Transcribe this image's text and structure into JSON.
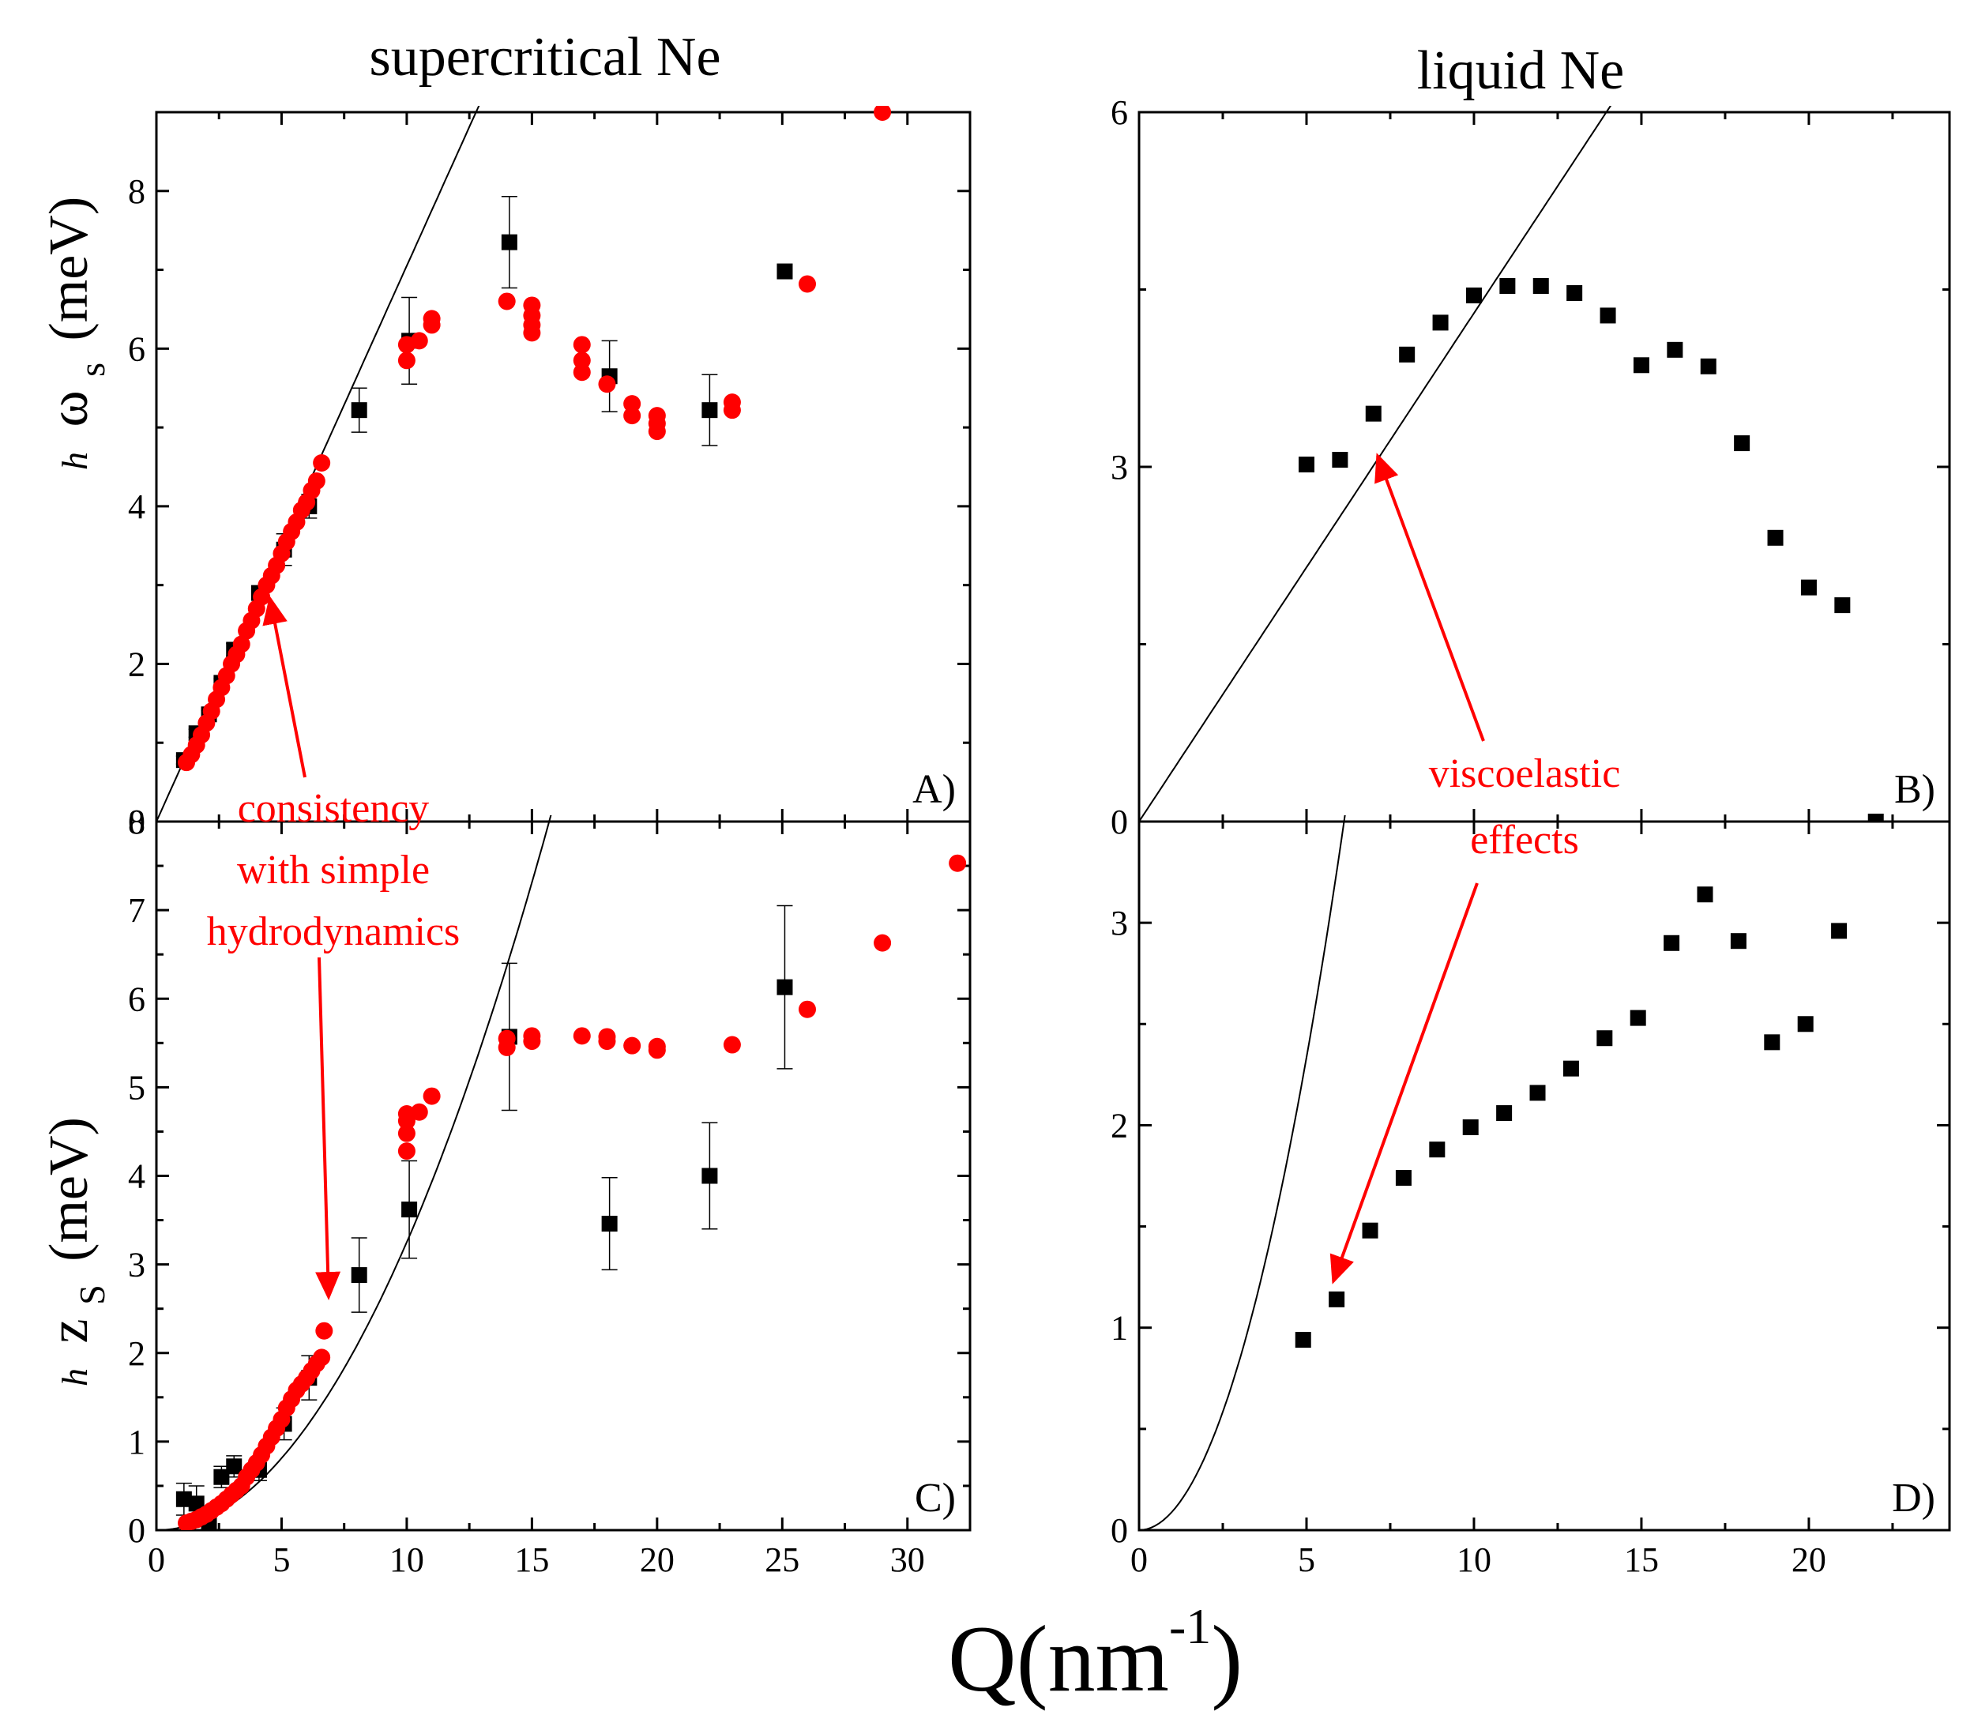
{
  "titles": {
    "left": "supercritical Ne",
    "right": "liquid Ne"
  },
  "xlabel": "Q(nm",
  "xlabel_sup": "-1",
  "xlabel_close": ")",
  "ylabel_top": {
    "h": "h",
    "omega": "ω",
    "sub": "s",
    "rest": "(meV)"
  },
  "ylabel_bottom": {
    "h": "h",
    "z": "z",
    "sub": "S",
    "rest": "(meV)"
  },
  "annotations": {
    "consistency": [
      "consistency",
      "with simple",
      "hydrodynamics"
    ],
    "viscoelastic": [
      "viscoelastic",
      "effects"
    ],
    "color": "#ff0000"
  },
  "colors": {
    "exp": "#000000",
    "md": "#ff0000",
    "line": "#000000"
  },
  "chart_data": [
    {
      "id": "A",
      "panel_label": "A)",
      "type": "scatter",
      "title": "supercritical Ne",
      "xlim": [
        0,
        32.5
      ],
      "ylim": [
        0,
        9
      ],
      "xticks": [
        0,
        5,
        10,
        15,
        20,
        25,
        30
      ],
      "yticks": [
        0,
        2,
        4,
        6,
        8
      ],
      "ytick_labels": [
        "0",
        "2",
        "4",
        "6",
        "8"
      ],
      "line": {
        "kind": "linear",
        "slope": 0.705
      },
      "series": [
        {
          "name": "exp",
          "marker": "square",
          "points": [
            [
              1.1,
              0.78
            ],
            [
              1.6,
              1.12
            ],
            [
              2.1,
              1.36
            ],
            [
              2.6,
              1.76
            ],
            [
              3.1,
              2.18
            ],
            [
              4.1,
              2.9
            ],
            [
              5.1,
              3.45
            ],
            [
              6.1,
              4.0
            ],
            [
              8.1,
              5.22
            ],
            [
              10.1,
              6.1
            ],
            [
              14.1,
              7.35
            ],
            [
              18.1,
              5.65
            ],
            [
              22.1,
              5.22
            ],
            [
              25.1,
              6.98
            ]
          ],
          "errors": [
            0.05,
            0.05,
            0.05,
            0.05,
            0.08,
            0.08,
            0.2,
            0.15,
            0.28,
            0.55,
            0.58,
            0.45,
            0.45,
            0.0
          ]
        },
        {
          "name": "md",
          "marker": "circle",
          "points": [
            [
              1.2,
              0.75
            ],
            [
              1.4,
              0.85
            ],
            [
              1.6,
              0.97
            ],
            [
              1.8,
              1.1
            ],
            [
              2.0,
              1.25
            ],
            [
              2.2,
              1.4
            ],
            [
              2.4,
              1.55
            ],
            [
              2.6,
              1.7
            ],
            [
              2.8,
              1.85
            ],
            [
              3.0,
              2.0
            ],
            [
              3.2,
              2.12
            ],
            [
              3.4,
              2.25
            ],
            [
              3.6,
              2.42
            ],
            [
              3.8,
              2.55
            ],
            [
              4.0,
              2.7
            ],
            [
              4.2,
              2.85
            ],
            [
              4.4,
              3.0
            ],
            [
              4.6,
              3.12
            ],
            [
              4.8,
              3.25
            ],
            [
              5.0,
              3.4
            ],
            [
              5.2,
              3.55
            ],
            [
              5.4,
              3.68
            ],
            [
              5.6,
              3.8
            ],
            [
              5.8,
              3.95
            ],
            [
              6.0,
              4.05
            ],
            [
              6.2,
              4.2
            ],
            [
              6.4,
              4.32
            ],
            [
              6.6,
              4.55
            ],
            [
              10.0,
              5.85
            ],
            [
              10.0,
              6.05
            ],
            [
              10.5,
              6.1
            ],
            [
              11.0,
              6.3
            ],
            [
              11.0,
              6.38
            ],
            [
              14.0,
              6.6
            ],
            [
              15.0,
              6.2
            ],
            [
              15.0,
              6.3
            ],
            [
              15.0,
              6.42
            ],
            [
              15.0,
              6.55
            ],
            [
              17.0,
              5.7
            ],
            [
              17.0,
              5.85
            ],
            [
              17.0,
              6.05
            ],
            [
              18.0,
              5.55
            ],
            [
              19.0,
              5.15
            ],
            [
              19.0,
              5.3
            ],
            [
              20.0,
              4.95
            ],
            [
              20.0,
              5.05
            ],
            [
              20.0,
              5.15
            ],
            [
              23.0,
              5.22
            ],
            [
              23.0,
              5.32
            ],
            [
              26.0,
              6.82
            ],
            [
              29.0,
              9.0
            ]
          ]
        }
      ]
    },
    {
      "id": "B",
      "panel_label": "B)",
      "type": "scatter",
      "title": "liquid Ne",
      "xlim": [
        0,
        24.2
      ],
      "ylim": [
        0,
        6
      ],
      "xticks": [
        0,
        5,
        10,
        15,
        20
      ],
      "yticks": [
        0,
        3,
        6
      ],
      "ytick_labels": [
        "0",
        "3",
        "6"
      ],
      "line": {
        "kind": "linear",
        "slope": 0.43
      },
      "series": [
        {
          "name": "exp",
          "marker": "square",
          "points": [
            [
              5,
              3.02
            ],
            [
              6,
              3.06
            ],
            [
              7,
              3.45
            ],
            [
              8,
              3.95
            ],
            [
              9,
              4.22
            ],
            [
              10,
              4.45
            ],
            [
              11,
              4.53
            ],
            [
              12,
              4.53
            ],
            [
              13,
              4.47
            ],
            [
              14,
              4.28
            ],
            [
              15,
              3.86
            ],
            [
              16,
              3.99
            ],
            [
              17,
              3.85
            ],
            [
              18,
              3.2
            ],
            [
              19,
              2.4
            ],
            [
              20,
              1.98
            ],
            [
              21,
              1.83
            ],
            [
              22,
              0.0
            ]
          ]
        }
      ]
    },
    {
      "id": "C",
      "panel_label": "C)",
      "type": "scatter",
      "xlim": [
        0,
        32.5
      ],
      "ylim": [
        0,
        8
      ],
      "xticks": [
        0,
        5,
        10,
        15,
        20,
        25,
        30
      ],
      "yticks": [
        0,
        1,
        2,
        3,
        4,
        5,
        6,
        7,
        8
      ],
      "ytick_labels": [
        "0",
        "1",
        "2",
        "3",
        "4",
        "5",
        "6",
        "7",
        "8"
      ],
      "line": {
        "kind": "quadratic",
        "coef": 0.0325
      },
      "series": [
        {
          "name": "exp",
          "marker": "square",
          "points": [
            [
              1.1,
              0.35
            ],
            [
              1.6,
              0.3
            ],
            [
              2.1,
              0.08
            ],
            [
              2.6,
              0.6
            ],
            [
              3.1,
              0.72
            ],
            [
              4.1,
              0.68
            ],
            [
              5.1,
              1.2
            ],
            [
              6.1,
              1.72
            ],
            [
              8.1,
              2.88
            ],
            [
              10.1,
              3.62
            ],
            [
              14.1,
              5.57
            ],
            [
              18.1,
              3.46
            ],
            [
              22.1,
              4.0
            ],
            [
              25.1,
              6.13
            ]
          ],
          "errors": [
            0.18,
            0.2,
            0.1,
            0.12,
            0.12,
            0.12,
            0.18,
            0.25,
            0.42,
            0.55,
            0.83,
            0.52,
            0.6,
            0.92
          ]
        },
        {
          "name": "md",
          "marker": "circle",
          "points": [
            [
              1.2,
              0.08
            ],
            [
              1.4,
              0.1
            ],
            [
              1.6,
              0.12
            ],
            [
              1.8,
              0.15
            ],
            [
              2.0,
              0.18
            ],
            [
              2.2,
              0.22
            ],
            [
              2.4,
              0.26
            ],
            [
              2.6,
              0.3
            ],
            [
              2.8,
              0.35
            ],
            [
              3.0,
              0.4
            ],
            [
              3.2,
              0.45
            ],
            [
              3.4,
              0.5
            ],
            [
              3.6,
              0.6
            ],
            [
              3.8,
              0.68
            ],
            [
              4.0,
              0.76
            ],
            [
              4.2,
              0.85
            ],
            [
              4.4,
              0.95
            ],
            [
              4.6,
              1.05
            ],
            [
              4.8,
              1.15
            ],
            [
              5.0,
              1.25
            ],
            [
              5.2,
              1.38
            ],
            [
              5.4,
              1.48
            ],
            [
              5.6,
              1.58
            ],
            [
              5.8,
              1.65
            ],
            [
              6.0,
              1.72
            ],
            [
              6.2,
              1.8
            ],
            [
              6.4,
              1.88
            ],
            [
              6.6,
              1.95
            ],
            [
              6.7,
              2.25
            ],
            [
              10.0,
              4.28
            ],
            [
              10.0,
              4.48
            ],
            [
              10.0,
              4.62
            ],
            [
              10.0,
              4.7
            ],
            [
              10.5,
              4.72
            ],
            [
              11.0,
              4.9
            ],
            [
              14.0,
              5.45
            ],
            [
              14.0,
              5.55
            ],
            [
              15.0,
              5.52
            ],
            [
              15.0,
              5.58
            ],
            [
              17.0,
              5.58
            ],
            [
              18.0,
              5.52
            ],
            [
              18.0,
              5.57
            ],
            [
              19.0,
              5.47
            ],
            [
              20.0,
              5.42
            ],
            [
              20.0,
              5.46
            ],
            [
              23.0,
              5.48
            ],
            [
              26.0,
              5.88
            ],
            [
              29.0,
              6.63
            ],
            [
              32.0,
              7.53
            ]
          ]
        }
      ]
    },
    {
      "id": "D",
      "panel_label": "D)",
      "type": "scatter",
      "xlim": [
        0,
        24.2
      ],
      "ylim": [
        0,
        3.5
      ],
      "xticks": [
        0,
        5,
        10,
        15,
        20
      ],
      "yticks": [
        0,
        1,
        2,
        3
      ],
      "ytick_labels": [
        "0",
        "1",
        "2",
        "3"
      ],
      "line": {
        "kind": "quadratic",
        "coef": 0.0934
      },
      "series": [
        {
          "name": "exp",
          "marker": "square",
          "points": [
            [
              4.9,
              0.94
            ],
            [
              5.9,
              1.14
            ],
            [
              6.9,
              1.48
            ],
            [
              7.9,
              1.74
            ],
            [
              8.9,
              1.88
            ],
            [
              9.9,
              1.99
            ],
            [
              10.9,
              2.06
            ],
            [
              11.9,
              2.16
            ],
            [
              12.9,
              2.28
            ],
            [
              13.9,
              2.43
            ],
            [
              14.9,
              2.53
            ],
            [
              15.9,
              2.9
            ],
            [
              16.9,
              3.14
            ],
            [
              17.9,
              2.91
            ],
            [
              18.9,
              2.41
            ],
            [
              19.9,
              2.5
            ],
            [
              20.9,
              2.96
            ]
          ]
        }
      ]
    }
  ]
}
